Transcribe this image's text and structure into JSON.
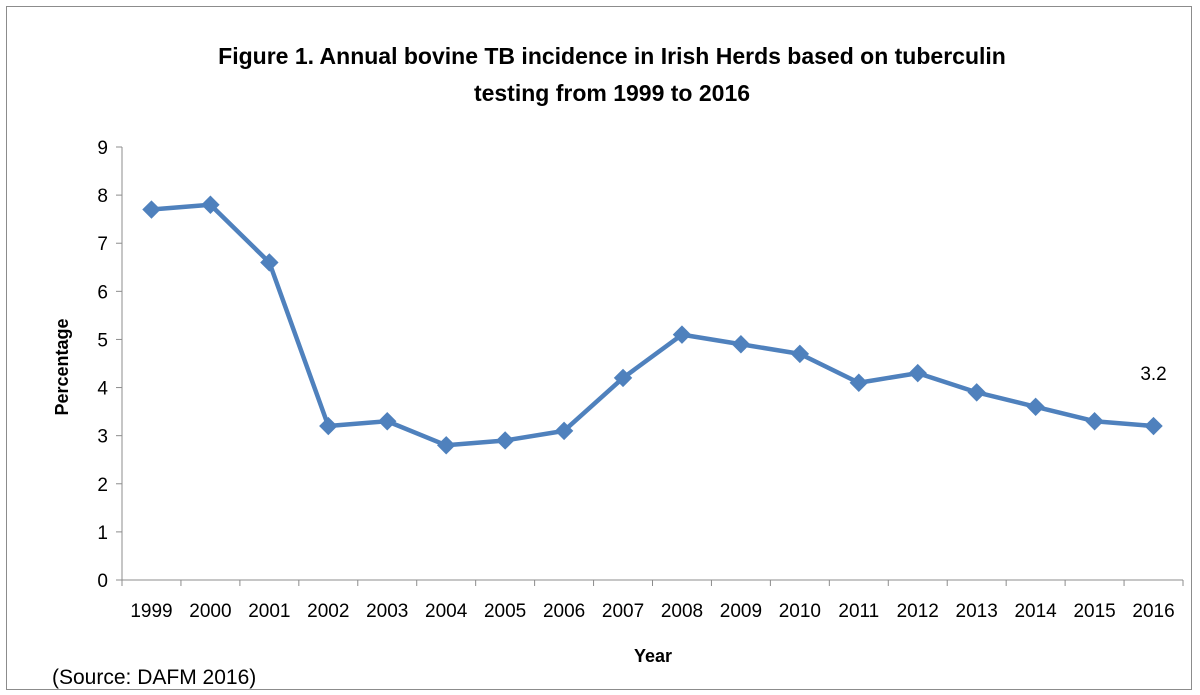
{
  "chart_data": {
    "type": "line",
    "title_lines": [
      "Figure 1. Annual bovine TB incidence in Irish Herds based on tuberculin",
      "testing from 1999 to 2016"
    ],
    "xlabel": "Year",
    "ylabel": "Percentage",
    "ylim": [
      0,
      9
    ],
    "yticks": [
      "0",
      "1",
      "2",
      "3",
      "4",
      "5",
      "6",
      "7",
      "8",
      "9"
    ],
    "categories": [
      "1999",
      "2000",
      "2001",
      "2002",
      "2003",
      "2004",
      "2005",
      "2006",
      "2007",
      "2008",
      "2009",
      "2010",
      "2011",
      "2012",
      "2013",
      "2014",
      "2015",
      "2016"
    ],
    "series": [
      {
        "values": [
          7.7,
          7.8,
          6.6,
          3.2,
          3.3,
          2.8,
          2.9,
          3.1,
          4.2,
          5.1,
          4.9,
          4.7,
          4.1,
          4.3,
          3.9,
          3.6,
          3.3,
          3.2
        ],
        "color": "#4f81bd"
      }
    ],
    "data_labels": [
      {
        "index": 17,
        "text": "3.2"
      }
    ],
    "grid": false,
    "legend": "none"
  },
  "footer": {
    "source": "(Source: DAFM 2016)"
  }
}
